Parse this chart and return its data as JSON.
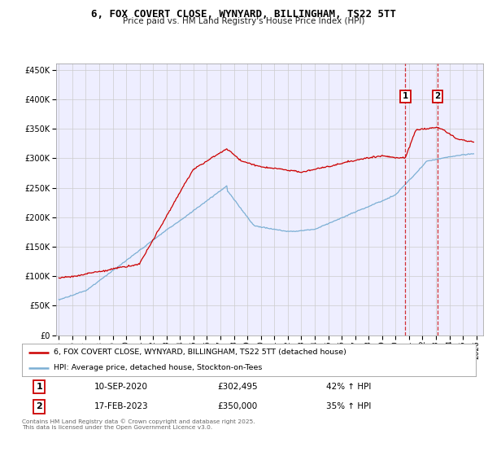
{
  "title": "6, FOX COVERT CLOSE, WYNYARD, BILLINGHAM, TS22 5TT",
  "subtitle": "Price paid vs. HM Land Registry's House Price Index (HPI)",
  "legend_line1": "6, FOX COVERT CLOSE, WYNYARD, BILLINGHAM, TS22 5TT (detached house)",
  "legend_line2": "HPI: Average price, detached house, Stockton-on-Tees",
  "sale1_date": "10-SEP-2020",
  "sale1_price": "£302,495",
  "sale1_hpi": "42% ↑ HPI",
  "sale2_date": "17-FEB-2023",
  "sale2_price": "£350,000",
  "sale2_hpi": "35% ↑ HPI",
  "footer": "Contains HM Land Registry data © Crown copyright and database right 2025.\nThis data is licensed under the Open Government Licence v3.0.",
  "red_color": "#cc0000",
  "blue_color": "#7bafd4",
  "grid_color": "#cccccc",
  "bg_color": "#ffffff",
  "plot_bg": "#eeeeff",
  "marker1_x_year": 2020.72,
  "marker2_x_year": 2023.12,
  "ylim": [
    0,
    460000
  ],
  "xlim_start": 1994.8,
  "xlim_end": 2026.5,
  "yticks": [
    0,
    50000,
    100000,
    150000,
    200000,
    250000,
    300000,
    350000,
    400000,
    450000
  ],
  "xticks": [
    1995,
    1996,
    1997,
    1998,
    1999,
    2000,
    2001,
    2002,
    2003,
    2004,
    2005,
    2006,
    2007,
    2008,
    2009,
    2010,
    2011,
    2012,
    2013,
    2014,
    2015,
    2016,
    2017,
    2018,
    2019,
    2020,
    2021,
    2022,
    2023,
    2024,
    2025,
    2026
  ]
}
